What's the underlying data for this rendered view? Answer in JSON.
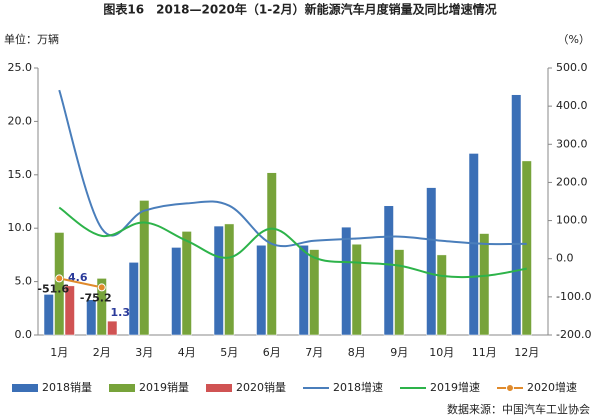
{
  "chart_data": {
    "type": "combo",
    "title": "图表16　2018—2020年（1-2月）新能源汽车月度销量及同比增速情况",
    "y_label": "单位：万辆",
    "y2_label": "（%）",
    "source": "数据来源：中国汽车工业协会",
    "categories": [
      "1月",
      "2月",
      "3月",
      "4月",
      "5月",
      "6月",
      "7月",
      "8月",
      "9月",
      "10月",
      "11月",
      "12月"
    ],
    "series": [
      {
        "name": "2018销量",
        "type": "bar",
        "color": "#3b6fb6",
        "values": [
          3.8,
          3.3,
          6.8,
          8.2,
          10.2,
          8.4,
          8.4,
          10.1,
          12.1,
          13.8,
          17.0,
          22.5
        ]
      },
      {
        "name": "2019销量",
        "type": "bar",
        "color": "#77a33a",
        "values": [
          9.6,
          5.3,
          12.6,
          9.7,
          10.4,
          15.2,
          8.0,
          8.5,
          8.0,
          7.5,
          9.5,
          16.3
        ]
      },
      {
        "name": "2020销量",
        "type": "bar",
        "color": "#d05353",
        "data_labels": true,
        "values": [
          4.6,
          1.3,
          null,
          null,
          null,
          null,
          null,
          null,
          null,
          null,
          null,
          null
        ]
      },
      {
        "name": "2018增速",
        "type": "line",
        "axis": "y2",
        "color": "#4a7ebb",
        "values": [
          442,
          79,
          126,
          145,
          139,
          39,
          47,
          53,
          58,
          47,
          39,
          39
        ]
      },
      {
        "name": "2019增速",
        "type": "line",
        "axis": "y2",
        "color": "#2db34a",
        "values": [
          134,
          60,
          95,
          47,
          3,
          79,
          3,
          -10,
          -18,
          -45,
          -45,
          -26
        ]
      },
      {
        "name": "2020增速",
        "type": "line",
        "axis": "y2",
        "color": "#e08a2b",
        "markers": true,
        "data_labels": true,
        "values": [
          -51.6,
          -75.2,
          null,
          null,
          null,
          null,
          null,
          null,
          null,
          null,
          null,
          null
        ]
      }
    ],
    "ylim": [
      0,
      25
    ],
    "yticks": [
      {
        "value": 0,
        "label": "0.0"
      },
      {
        "value": 5,
        "label": "5.0"
      },
      {
        "value": 10,
        "label": "10.0"
      },
      {
        "value": 15,
        "label": "15.0"
      },
      {
        "value": 20,
        "label": "20.0"
      },
      {
        "value": 25,
        "label": "25.0"
      }
    ],
    "y2lim": [
      -200,
      500
    ],
    "y2ticks": [
      {
        "value": -200,
        "label": "-200.0"
      },
      {
        "value": -100,
        "label": "-100.0"
      },
      {
        "value": 0,
        "label": "0.0"
      },
      {
        "value": 100,
        "label": "100.0"
      },
      {
        "value": 200,
        "label": "200.0"
      },
      {
        "value": 300,
        "label": "300.0"
      },
      {
        "value": 400,
        "label": "400.0"
      },
      {
        "value": 500,
        "label": "500.0"
      }
    ]
  }
}
